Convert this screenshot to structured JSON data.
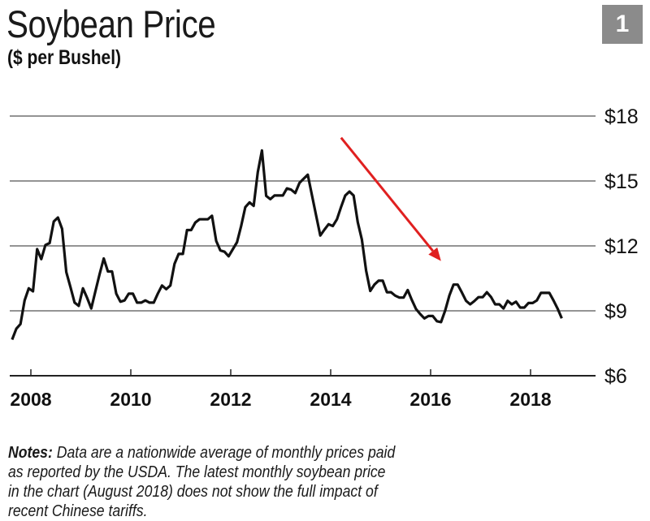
{
  "header": {
    "title": "Soybean Price",
    "subtitle": "($ per Bushel)",
    "badge": "1"
  },
  "notes": {
    "label": "Notes:",
    "text": "Data are a nationwide average of monthly prices paid as reported by the USDA. The latest monthly soybean price in the chart (August 2018) does not show the full impact of recent Chinese tariffs."
  },
  "chart_data": {
    "type": "line",
    "title": "Soybean Price",
    "subtitle": "($ per Bushel)",
    "xlabel": "",
    "ylabel": "",
    "ylim": [
      6,
      18
    ],
    "yticks": [
      6,
      9,
      12,
      15,
      18
    ],
    "ytick_labels": [
      "$6",
      "$9",
      "$12",
      "$15",
      "$18"
    ],
    "xticks": [
      2008,
      2010,
      2012,
      2014,
      2016,
      2018
    ],
    "xtick_labels": [
      "2008",
      "2010",
      "2012",
      "2014",
      "2016",
      "2018"
    ],
    "grid": "horizontal",
    "colors": {
      "line": "#111111",
      "arrow": "#e02020",
      "grid": "#555555",
      "badge": "#8b8b8b"
    },
    "annotation": {
      "type": "arrow",
      "from": [
        "2014-03",
        17.0
      ],
      "to": [
        "2016-03",
        11.3
      ]
    },
    "series": [
      {
        "x": [
          "2007-08",
          "2007-09",
          "2007-10",
          "2007-11",
          "2007-12",
          "2008-01",
          "2008-02",
          "2008-03",
          "2008-04",
          "2008-05",
          "2008-06",
          "2008-07",
          "2008-08",
          "2008-09",
          "2008-10",
          "2008-11",
          "2008-12",
          "2009-01",
          "2009-02",
          "2009-03",
          "2009-04",
          "2009-05",
          "2009-06",
          "2009-07",
          "2009-08",
          "2009-09",
          "2009-10",
          "2009-11",
          "2009-12",
          "2010-01",
          "2010-02",
          "2010-03",
          "2010-04",
          "2010-05",
          "2010-06",
          "2010-07",
          "2010-08",
          "2010-09",
          "2010-10",
          "2010-11",
          "2010-12",
          "2011-01",
          "2011-02",
          "2011-03",
          "2011-04",
          "2011-05",
          "2011-06",
          "2011-07",
          "2011-08",
          "2011-09",
          "2011-10",
          "2011-11",
          "2011-12",
          "2012-01",
          "2012-02",
          "2012-03",
          "2012-04",
          "2012-05",
          "2012-06",
          "2012-07",
          "2012-08",
          "2012-09",
          "2012-10",
          "2012-11",
          "2012-12",
          "2013-01",
          "2013-02",
          "2013-03",
          "2013-04",
          "2013-05",
          "2013-06",
          "2013-07",
          "2013-08",
          "2013-09",
          "2013-10",
          "2013-11",
          "2013-12",
          "2014-01",
          "2014-02",
          "2014-03",
          "2014-04",
          "2014-05",
          "2014-06",
          "2014-07",
          "2014-08",
          "2014-09",
          "2014-10",
          "2014-11",
          "2014-12",
          "2015-01",
          "2015-02",
          "2015-03",
          "2015-04",
          "2015-05",
          "2015-06",
          "2015-07",
          "2015-08",
          "2015-09",
          "2015-10",
          "2015-11",
          "2015-12",
          "2016-01",
          "2016-02",
          "2016-03",
          "2016-04",
          "2016-05",
          "2016-06",
          "2016-07",
          "2016-08",
          "2016-09",
          "2016-10",
          "2016-11",
          "2016-12",
          "2017-01",
          "2017-02",
          "2017-03",
          "2017-04",
          "2017-05",
          "2017-06",
          "2017-07",
          "2017-08",
          "2017-09",
          "2017-10",
          "2017-11",
          "2017-12",
          "2018-01",
          "2018-02",
          "2018-03",
          "2018-04",
          "2018-05",
          "2018-06",
          "2018-07",
          "2018-08"
        ],
        "y": [
          7.67,
          8.17,
          8.39,
          9.48,
          10.04,
          9.9,
          11.85,
          11.39,
          12.04,
          12.13,
          13.13,
          13.31,
          12.79,
          10.79,
          10.1,
          9.38,
          9.23,
          10.04,
          9.6,
          9.11,
          9.9,
          10.7,
          11.42,
          10.82,
          10.82,
          9.79,
          9.42,
          9.48,
          9.79,
          9.79,
          9.38,
          9.38,
          9.48,
          9.38,
          9.38,
          9.8,
          10.17,
          10.0,
          10.17,
          11.17,
          11.63,
          11.63,
          12.73,
          12.73,
          13.08,
          13.23,
          13.23,
          13.23,
          13.39,
          12.23,
          11.79,
          11.73,
          11.52,
          11.85,
          12.17,
          12.92,
          13.79,
          14.01,
          13.85,
          15.41,
          16.41,
          14.31,
          14.16,
          14.33,
          14.33,
          14.33,
          14.66,
          14.6,
          14.44,
          14.91,
          15.1,
          15.29,
          14.35,
          13.4,
          12.48,
          12.75,
          13.0,
          12.92,
          13.23,
          13.8,
          14.33,
          14.51,
          14.33,
          13.1,
          12.29,
          10.86,
          9.92,
          10.21,
          10.39,
          10.39,
          9.86,
          9.86,
          9.7,
          9.61,
          9.61,
          9.96,
          9.5,
          9.08,
          8.85,
          8.65,
          8.76,
          8.76,
          8.52,
          8.48,
          9.01,
          9.71,
          10.21,
          10.21,
          9.85,
          9.46,
          9.3,
          9.45,
          9.63,
          9.63,
          9.86,
          9.64,
          9.3,
          9.3,
          9.11,
          9.46,
          9.3,
          9.42,
          9.15,
          9.15,
          9.36,
          9.36,
          9.48,
          9.83,
          9.83,
          9.83,
          9.48,
          9.1,
          8.65
        ]
      }
    ]
  }
}
